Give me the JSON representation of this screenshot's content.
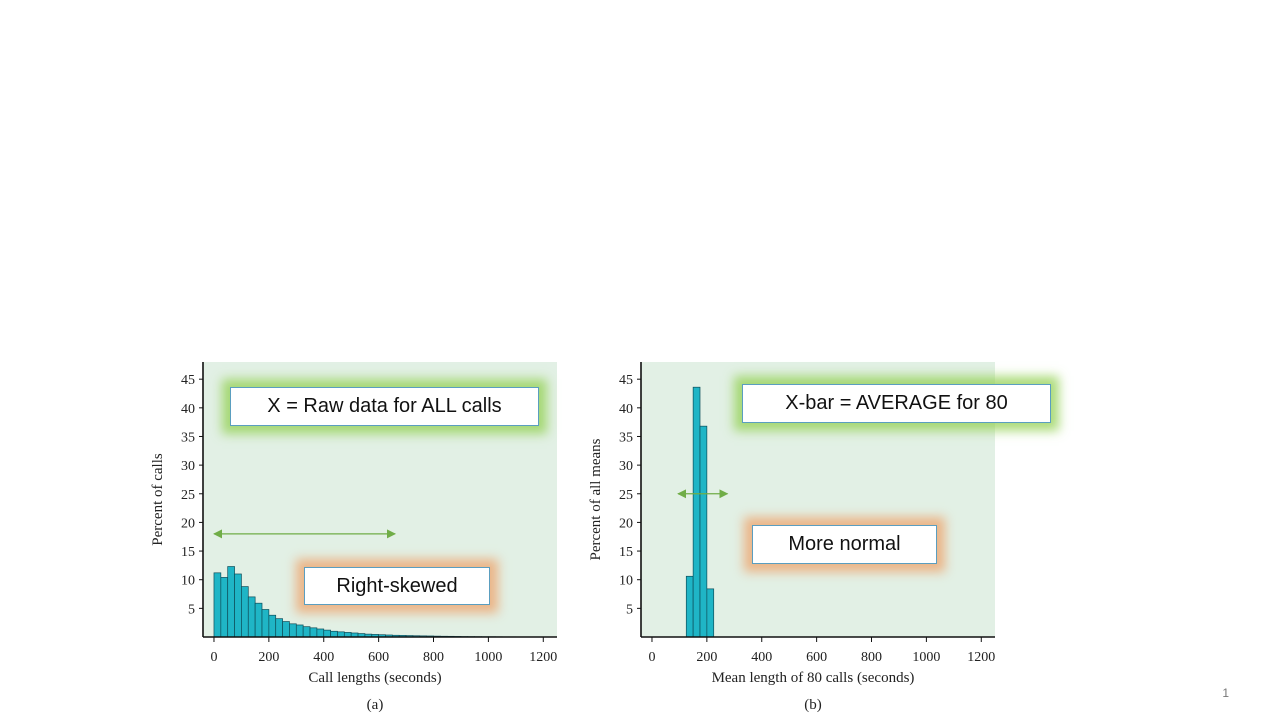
{
  "colors": {
    "panel_bg": "#e2f0e5",
    "bar_fill": "#1fb5c6",
    "bar_stroke": "#0e4e5a",
    "arrow": "#70ad47",
    "glow_green": "#92d050",
    "glow_orange": "#eda670"
  },
  "callouts": {
    "raw_data": "X = Raw data for ALL calls",
    "average": "X-bar = AVERAGE for 80",
    "right_skewed": "Right-skewed",
    "more_normal": "More normal"
  },
  "slide_number": "1",
  "chart_data": [
    {
      "type": "bar",
      "panel": "(a)",
      "xlabel": "Call lengths (seconds)",
      "ylabel": "Percent of calls",
      "xlim": [
        -40,
        1250
      ],
      "ylim": [
        0,
        48
      ],
      "xticks": [
        0,
        200,
        400,
        600,
        800,
        1000,
        1200
      ],
      "yticks": [
        5,
        10,
        15,
        20,
        25,
        30,
        35,
        40,
        45
      ],
      "bin_width": 25,
      "bin_start": 0,
      "values": [
        11.2,
        10.4,
        12.3,
        11.0,
        8.8,
        7.0,
        5.9,
        4.8,
        3.8,
        3.2,
        2.7,
        2.3,
        2.1,
        1.8,
        1.6,
        1.4,
        1.2,
        1.0,
        0.9,
        0.8,
        0.7,
        0.6,
        0.5,
        0.45,
        0.4,
        0.35,
        0.3,
        0.28,
        0.25,
        0.22,
        0.2,
        0.18,
        0.15,
        0.13,
        0.12,
        0.1,
        0.08,
        0.07,
        0.06,
        0.05,
        0.05,
        0.04,
        0.03,
        0.03,
        0.02,
        0.02,
        0.02,
        0.02
      ],
      "annotation_range": [
        0,
        660
      ]
    },
    {
      "type": "bar",
      "panel": "(b)",
      "xlabel": "Mean length of 80 calls (seconds)",
      "ylabel": "Percent of all means",
      "xlim": [
        -40,
        1250
      ],
      "ylim": [
        0,
        48
      ],
      "xticks": [
        0,
        200,
        400,
        600,
        800,
        1000,
        1200
      ],
      "yticks": [
        5,
        10,
        15,
        20,
        25,
        30,
        35,
        40,
        45
      ],
      "bin_width": 25,
      "bin_start": 125,
      "values": [
        10.6,
        43.6,
        36.8,
        8.4
      ],
      "annotation_range": [
        95,
        275
      ]
    }
  ]
}
